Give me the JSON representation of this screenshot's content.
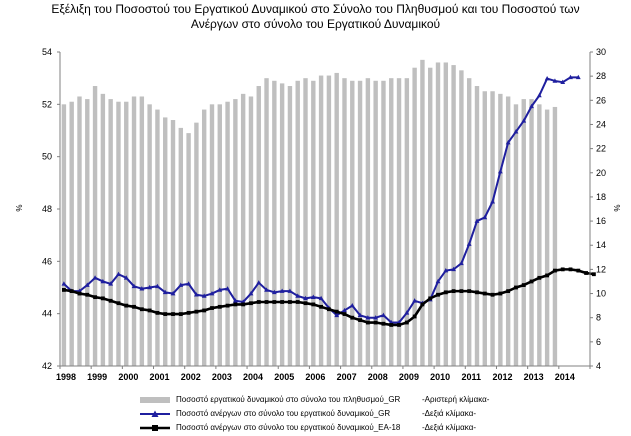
{
  "title": {
    "line1": "Εξέλιξη του Ποσοστού του Εργατικού Δυναμικού στο Σύνολο του Πληθυσμού και του Ποσοστού των",
    "line2": "Ανέργων στο σύνολο του Εργατικού Δυναμικού"
  },
  "chart_data": {
    "type": "bar+line",
    "left_axis": {
      "label": "%",
      "min": 42,
      "max": 54,
      "ticks": [
        42,
        44,
        46,
        48,
        50,
        52,
        54
      ]
    },
    "right_axis": {
      "label": "%",
      "min": 4,
      "max": 30,
      "ticks": [
        4,
        6,
        8,
        10,
        12,
        14,
        16,
        18,
        20,
        22,
        24,
        26,
        28,
        30
      ]
    },
    "x_ticks": [
      "1998",
      "1999",
      "2000",
      "2001",
      "2002",
      "2003",
      "2004",
      "2005",
      "2006",
      "2007",
      "2008",
      "2009",
      "2010",
      "2011",
      "2012",
      "2013",
      "2014"
    ],
    "x_start_year": 1998,
    "periods_per_year": 4,
    "grid": false,
    "legend_position": "bottom",
    "series": [
      {
        "name": "Ποσοστό εργατικού δυναμικού στο σύνολο του πληθυσμού_GR",
        "note": "-Αριστερή κλίμακα-",
        "type": "bar",
        "axis": "left",
        "color": "#bfbfbf",
        "values": [
          52.0,
          52.1,
          52.3,
          52.2,
          52.7,
          52.4,
          52.2,
          52.1,
          52.1,
          52.3,
          52.3,
          52.0,
          51.8,
          51.5,
          51.4,
          51.1,
          50.9,
          51.3,
          51.8,
          52.0,
          52.0,
          52.1,
          52.2,
          52.4,
          52.3,
          52.7,
          53.0,
          52.9,
          52.8,
          52.7,
          52.9,
          53.0,
          52.9,
          53.1,
          53.1,
          53.2,
          53.0,
          52.9,
          52.9,
          53.0,
          52.9,
          52.9,
          53.0,
          53.0,
          53.0,
          53.4,
          53.7,
          53.4,
          53.6,
          53.6,
          53.5,
          53.3,
          53.0,
          52.7,
          52.5,
          52.5,
          52.4,
          52.3,
          52.0,
          52.2,
          52.2,
          52.0,
          51.8,
          51.9
        ]
      },
      {
        "name": "Ποσοστό ανέργων στο σύνολο του εργατικού δυναμικού_GR",
        "note": "-Δεξιά κλίμακα-",
        "type": "line",
        "marker": "triangle",
        "axis": "right",
        "color": "#1f1f9f",
        "values": [
          10.8,
          10.2,
          10.2,
          10.7,
          11.3,
          11.0,
          10.8,
          11.6,
          11.3,
          10.6,
          10.4,
          10.5,
          10.6,
          10.1,
          10.0,
          10.7,
          10.8,
          9.9,
          9.8,
          10.0,
          10.3,
          10.4,
          9.4,
          9.3,
          10.0,
          10.9,
          10.3,
          10.1,
          10.2,
          10.2,
          9.8,
          9.6,
          9.7,
          9.6,
          8.8,
          8.2,
          8.6,
          9.0,
          8.2,
          8.0,
          8.0,
          8.2,
          7.6,
          7.6,
          8.4,
          9.4,
          9.2,
          9.5,
          11.0,
          11.9,
          12.0,
          12.5,
          14.1,
          16.0,
          16.3,
          17.6,
          20.1,
          22.5,
          23.4,
          24.3,
          25.5,
          26.4,
          27.8,
          27.6,
          27.5,
          27.9,
          27.9
        ]
      },
      {
        "name": "Ποσοστό ανέργων στο σύνολο του εργατικού δυναμικού_EA-18",
        "note": "-Δεξιά κλίμακα-",
        "type": "line",
        "marker": "square",
        "axis": "right",
        "color": "#000000",
        "values": [
          10.3,
          10.2,
          10.0,
          9.9,
          9.7,
          9.6,
          9.4,
          9.2,
          9.0,
          8.9,
          8.7,
          8.6,
          8.4,
          8.3,
          8.3,
          8.3,
          8.4,
          8.5,
          8.6,
          8.8,
          8.9,
          9.0,
          9.1,
          9.1,
          9.2,
          9.3,
          9.3,
          9.3,
          9.3,
          9.3,
          9.3,
          9.2,
          9.1,
          8.9,
          8.7,
          8.5,
          8.3,
          8.0,
          7.8,
          7.6,
          7.6,
          7.5,
          7.4,
          7.4,
          7.6,
          8.1,
          9.1,
          9.6,
          9.9,
          10.1,
          10.2,
          10.2,
          10.2,
          10.1,
          10.0,
          9.9,
          10.0,
          10.2,
          10.5,
          10.7,
          11.0,
          11.3,
          11.5,
          11.9,
          12.0,
          12.0,
          11.9,
          11.7,
          11.6
        ]
      }
    ]
  }
}
